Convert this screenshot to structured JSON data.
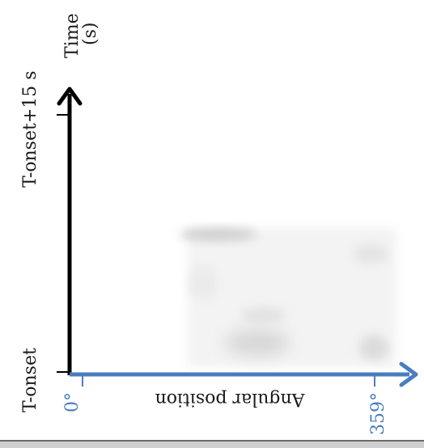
{
  "figure": {
    "y_axis": {
      "title_line1": "Time",
      "title_line2": "(s)",
      "tick_top": "T-onset+15 s",
      "tick_bottom": "T-onset",
      "color": "#000000"
    },
    "x_axis": {
      "title": "Angular position",
      "tick_left": "0°",
      "tick_right": "359°",
      "color": "#4a7dbf"
    },
    "heatmap": {
      "description_colors": {
        "background": "#f2f2f2",
        "blob": "#cfcfcf"
      }
    }
  }
}
